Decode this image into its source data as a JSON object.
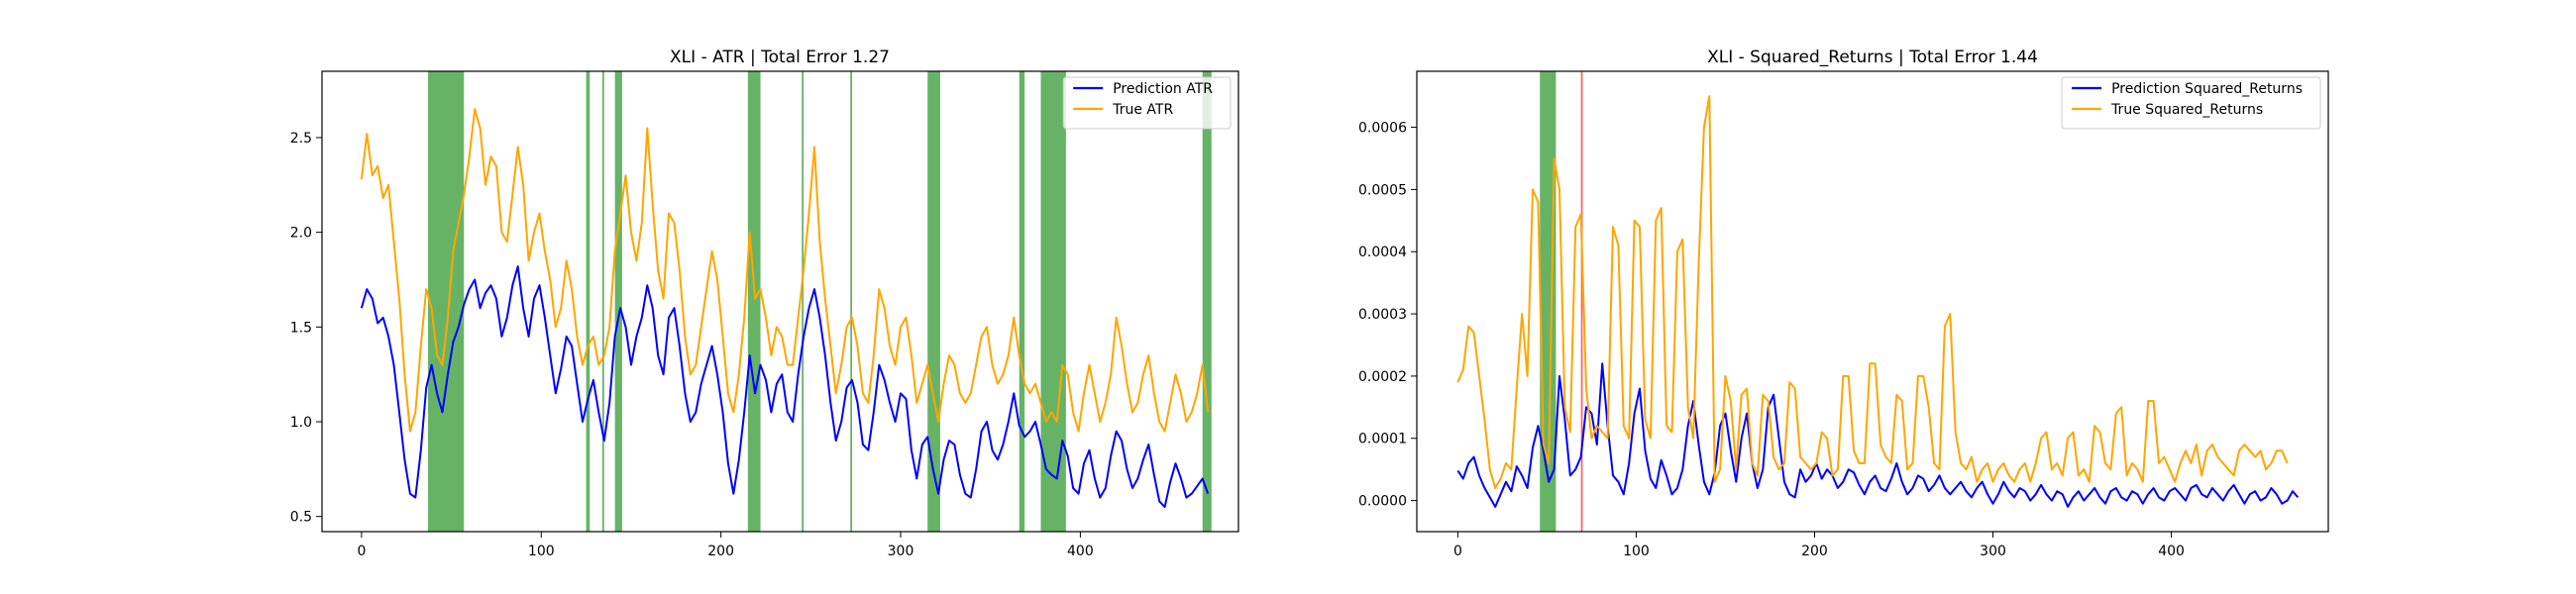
{
  "figure": {
    "background": "#ffffff"
  },
  "chart_data": [
    {
      "type": "line",
      "title": "XLI - ATR | Total Error 1.27",
      "xlabel": "",
      "ylabel": "",
      "xlim": [
        -22,
        488
      ],
      "ylim": [
        0.42,
        2.85
      ],
      "xticks": [
        0,
        100,
        200,
        300,
        400
      ],
      "xtick_labels": [
        "0",
        "100",
        "200",
        "300",
        "400"
      ],
      "yticks": [
        0.5,
        1.0,
        1.5,
        2.0,
        2.5
      ],
      "ytick_labels": [
        "0.5",
        "1.0",
        "1.5",
        "2.0",
        "2.5"
      ],
      "grid": false,
      "legend": "top-right",
      "x_start": 0,
      "x_step": 3,
      "series": [
        {
          "name": "Prediction ATR",
          "color": "#0000ff",
          "values": [
            1.6,
            1.7,
            1.65,
            1.52,
            1.55,
            1.45,
            1.3,
            1.05,
            0.8,
            0.62,
            0.6,
            0.85,
            1.18,
            1.3,
            1.15,
            1.05,
            1.25,
            1.42,
            1.5,
            1.62,
            1.7,
            1.75,
            1.6,
            1.68,
            1.72,
            1.65,
            1.45,
            1.55,
            1.72,
            1.82,
            1.6,
            1.45,
            1.65,
            1.72,
            1.55,
            1.35,
            1.15,
            1.28,
            1.45,
            1.4,
            1.2,
            1.0,
            1.12,
            1.22,
            1.05,
            0.9,
            1.1,
            1.45,
            1.6,
            1.5,
            1.3,
            1.45,
            1.55,
            1.72,
            1.6,
            1.35,
            1.25,
            1.55,
            1.6,
            1.4,
            1.15,
            1.0,
            1.05,
            1.2,
            1.3,
            1.4,
            1.25,
            1.05,
            0.78,
            0.62,
            0.8,
            1.05,
            1.35,
            1.15,
            1.3,
            1.22,
            1.05,
            1.2,
            1.25,
            1.05,
            1.0,
            1.25,
            1.45,
            1.6,
            1.7,
            1.55,
            1.35,
            1.1,
            0.9,
            1.0,
            1.18,
            1.22,
            1.1,
            0.88,
            0.85,
            1.05,
            1.3,
            1.22,
            1.1,
            1.0,
            1.15,
            1.12,
            0.85,
            0.7,
            0.88,
            0.92,
            0.75,
            0.62,
            0.8,
            0.9,
            0.88,
            0.72,
            0.62,
            0.6,
            0.75,
            0.95,
            1.0,
            0.85,
            0.8,
            0.88,
            1.0,
            1.15,
            0.98,
            0.92,
            0.95,
            1.0,
            0.88,
            0.75,
            0.72,
            0.7,
            0.9,
            0.82,
            0.65,
            0.62,
            0.78,
            0.85,
            0.7,
            0.6,
            0.65,
            0.82,
            0.95,
            0.9,
            0.75,
            0.65,
            0.7,
            0.8,
            0.88,
            0.72,
            0.58,
            0.55,
            0.68,
            0.78,
            0.7,
            0.6,
            0.62,
            0.66,
            0.7,
            0.62
          ]
        },
        {
          "name": "True ATR",
          "color": "#ffa500",
          "values": [
            2.28,
            2.52,
            2.3,
            2.35,
            2.18,
            2.25,
            1.95,
            1.65,
            1.25,
            0.95,
            1.05,
            1.4,
            1.7,
            1.6,
            1.35,
            1.3,
            1.55,
            1.9,
            2.05,
            2.2,
            2.4,
            2.65,
            2.55,
            2.25,
            2.4,
            2.35,
            2.0,
            1.95,
            2.2,
            2.45,
            2.25,
            1.85,
            2.0,
            2.1,
            1.9,
            1.75,
            1.5,
            1.6,
            1.85,
            1.7,
            1.45,
            1.3,
            1.4,
            1.45,
            1.3,
            1.35,
            1.5,
            1.9,
            2.1,
            2.3,
            2.0,
            1.85,
            2.05,
            2.55,
            2.15,
            1.8,
            1.65,
            2.1,
            2.05,
            1.8,
            1.45,
            1.25,
            1.3,
            1.5,
            1.7,
            1.9,
            1.75,
            1.45,
            1.15,
            1.05,
            1.25,
            1.55,
            2.0,
            1.65,
            1.7,
            1.55,
            1.35,
            1.5,
            1.45,
            1.3,
            1.3,
            1.55,
            1.8,
            2.1,
            2.45,
            1.95,
            1.65,
            1.4,
            1.15,
            1.3,
            1.5,
            1.55,
            1.4,
            1.15,
            1.1,
            1.35,
            1.7,
            1.6,
            1.4,
            1.3,
            1.5,
            1.55,
            1.35,
            1.1,
            1.2,
            1.3,
            1.15,
            1.0,
            1.2,
            1.35,
            1.3,
            1.15,
            1.1,
            1.15,
            1.3,
            1.45,
            1.5,
            1.3,
            1.2,
            1.25,
            1.35,
            1.55,
            1.35,
            1.2,
            1.15,
            1.2,
            1.1,
            1.0,
            1.05,
            1.0,
            1.3,
            1.25,
            1.05,
            0.95,
            1.15,
            1.3,
            1.15,
            1.0,
            1.1,
            1.25,
            1.55,
            1.4,
            1.2,
            1.05,
            1.1,
            1.25,
            1.35,
            1.15,
            1.0,
            0.95,
            1.1,
            1.25,
            1.15,
            1.0,
            1.05,
            1.15,
            1.3,
            1.05
          ]
        }
      ],
      "bands": [
        {
          "x0": 37,
          "x1": 57,
          "color": "#008000",
          "opacity": 0.6
        },
        {
          "x0": 125,
          "x1": 127,
          "color": "#008000",
          "opacity": 0.6
        },
        {
          "x0": 134,
          "x1": 135,
          "color": "#008000",
          "opacity": 0.6
        },
        {
          "x0": 141,
          "x1": 145,
          "color": "#008000",
          "opacity": 0.6
        },
        {
          "x0": 215,
          "x1": 222,
          "color": "#008000",
          "opacity": 0.6
        },
        {
          "x0": 245,
          "x1": 246,
          "color": "#008000",
          "opacity": 0.6
        },
        {
          "x0": 272,
          "x1": 273,
          "color": "#008000",
          "opacity": 0.6
        },
        {
          "x0": 315,
          "x1": 322,
          "color": "#008000",
          "opacity": 0.6
        },
        {
          "x0": 366,
          "x1": 369,
          "color": "#008000",
          "opacity": 0.6
        },
        {
          "x0": 378,
          "x1": 392,
          "color": "#008000",
          "opacity": 0.6
        },
        {
          "x0": 468,
          "x1": 473,
          "color": "#008000",
          "opacity": 0.6
        }
      ]
    },
    {
      "type": "line",
      "title": "XLI - Squared_Returns | Total Error 1.44",
      "xlabel": "",
      "ylabel": "",
      "xlim": [
        -23,
        488
      ],
      "ylim": [
        -5e-05,
        0.00069
      ],
      "xticks": [
        0,
        100,
        200,
        300,
        400
      ],
      "xtick_labels": [
        "0",
        "100",
        "200",
        "300",
        "400"
      ],
      "yticks": [
        0.0,
        0.0001,
        0.0002,
        0.0003,
        0.0004,
        0.0005,
        0.0006
      ],
      "ytick_labels": [
        "0.0000",
        "0.0001",
        "0.0002",
        "0.0003",
        "0.0004",
        "0.0005",
        "0.0006"
      ],
      "grid": false,
      "legend": "top-right",
      "x_start": 0,
      "x_step": 3,
      "series": [
        {
          "name": "Prediction Squared_Returns",
          "color": "#0000ff",
          "values": [
            4.8e-05,
            3.5e-05,
            6e-05,
            7e-05,
            4e-05,
            2e-05,
            5e-06,
            -1e-05,
            1e-05,
            3e-05,
            1.5e-05,
            5.5e-05,
            4e-05,
            2e-05,
            8.5e-05,
            0.00012,
            8e-05,
            3e-05,
            5e-05,
            0.0002,
            0.00013,
            4e-05,
            5e-05,
            7e-05,
            0.00015,
            0.00014,
            9e-05,
            0.00022,
            0.00012,
            4e-05,
            3e-05,
            1e-05,
            6e-05,
            0.00014,
            0.00018,
            8e-05,
            3.5e-05,
            2e-05,
            6.5e-05,
            4e-05,
            1e-05,
            2e-05,
            5e-05,
            0.00012,
            0.00016,
            9e-05,
            3e-05,
            1e-05,
            4.5e-05,
            0.00012,
            0.00014,
            8e-05,
            3e-05,
            0.0001,
            0.00014,
            6e-05,
            2e-05,
            5e-05,
            0.00015,
            0.00017,
            0.0001,
            3e-05,
            1e-05,
            5e-06,
            5e-05,
            3e-05,
            4e-05,
            6e-05,
            3.5e-05,
            5e-05,
            4e-05,
            2e-05,
            3e-05,
            5e-05,
            4.5e-05,
            2.5e-05,
            1e-05,
            3e-05,
            4e-05,
            2e-05,
            1.5e-05,
            3.5e-05,
            6e-05,
            3e-05,
            1e-05,
            2e-05,
            4e-05,
            3.5e-05,
            1.5e-05,
            2.5e-05,
            4e-05,
            2e-05,
            1e-05,
            2e-05,
            3e-05,
            1.5e-05,
            5e-06,
            2e-05,
            3e-05,
            1e-05,
            -5e-06,
            1e-05,
            3e-05,
            1.5e-05,
            5e-06,
            2e-05,
            1.5e-05,
            0.0,
            1e-05,
            2.5e-05,
            1e-05,
            0.0,
            1.5e-05,
            1e-05,
            -1e-05,
            5e-06,
            1.5e-05,
            0.0,
            1e-05,
            2e-05,
            5e-06,
            -5e-06,
            1.5e-05,
            2e-05,
            5e-06,
            0.0,
            1.5e-05,
            1e-05,
            -5e-06,
            1e-05,
            2e-05,
            5e-06,
            0.0,
            1.5e-05,
            2e-05,
            1e-05,
            0.0,
            2e-05,
            2.5e-05,
            1e-05,
            5e-06,
            2e-05,
            1e-05,
            0.0,
            1.5e-05,
            2.5e-05,
            1e-05,
            -5e-06,
            1e-05,
            1.5e-05,
            0.0,
            5e-06,
            2e-05,
            1e-05,
            -5e-06,
            0.0,
            1.5e-05,
            5e-06
          ]
        },
        {
          "name": "True Squared_Returns",
          "color": "#ffa500",
          "values": [
            0.00019,
            0.00021,
            0.00028,
            0.00027,
            0.0002,
            0.00013,
            5e-05,
            2e-05,
            3.5e-05,
            6e-05,
            5e-05,
            0.00018,
            0.0003,
            0.0002,
            0.0005,
            0.00048,
            9e-05,
            6e-05,
            0.00055,
            0.0005,
            0.00015,
            0.00011,
            0.00044,
            0.00046,
            0.00018,
            0.0001,
            0.00012,
            0.00011,
            0.0001,
            0.00044,
            0.00041,
            0.00012,
            0.0001,
            0.00045,
            0.00044,
            0.00013,
            0.0001,
            0.00045,
            0.00047,
            0.00012,
            0.00011,
            0.0004,
            0.00042,
            0.00015,
            0.0001,
            0.00038,
            0.0006,
            0.00065,
            3e-05,
            5e-05,
            0.0002,
            0.00016,
            5e-05,
            0.00017,
            0.00018,
            6e-05,
            4e-05,
            0.00017,
            0.00016,
            7e-05,
            5e-05,
            6e-05,
            0.00019,
            0.00018,
            7e-05,
            6e-05,
            5e-05,
            6e-05,
            0.00011,
            0.0001,
            4e-05,
            5e-05,
            0.0002,
            0.0002,
            8e-05,
            6e-05,
            6e-05,
            0.00022,
            0.00022,
            9e-05,
            7e-05,
            6e-05,
            0.00017,
            0.00016,
            5e-05,
            6e-05,
            0.0002,
            0.0002,
            0.00015,
            6e-05,
            5e-05,
            0.00028,
            0.0003,
            0.00011,
            6e-05,
            5e-05,
            7e-05,
            3e-05,
            5e-05,
            6e-05,
            3e-05,
            5e-05,
            6e-05,
            4e-05,
            3e-05,
            5e-05,
            6e-05,
            3e-05,
            6e-05,
            0.0001,
            0.00011,
            5e-05,
            6e-05,
            4e-05,
            0.0001,
            0.00011,
            4e-05,
            5e-05,
            3e-05,
            0.00012,
            0.00011,
            6e-05,
            5e-05,
            0.00014,
            0.00015,
            4e-05,
            6e-05,
            5e-05,
            3e-05,
            0.00016,
            0.00016,
            6e-05,
            7e-05,
            5e-05,
            3e-05,
            6e-05,
            8e-05,
            6e-05,
            9e-05,
            4e-05,
            8e-05,
            9e-05,
            7e-05,
            6e-05,
            5e-05,
            4e-05,
            8e-05,
            9e-05,
            8e-05,
            7e-05,
            8e-05,
            5e-05,
            6e-05,
            8e-05,
            8e-05,
            6e-05
          ]
        }
      ],
      "bands": [
        {
          "x0": 46,
          "x1": 55,
          "color": "#008000",
          "opacity": 0.6
        },
        {
          "x0": 69,
          "x1": 70,
          "color": "#ff0000",
          "opacity": 0.6
        }
      ]
    }
  ]
}
